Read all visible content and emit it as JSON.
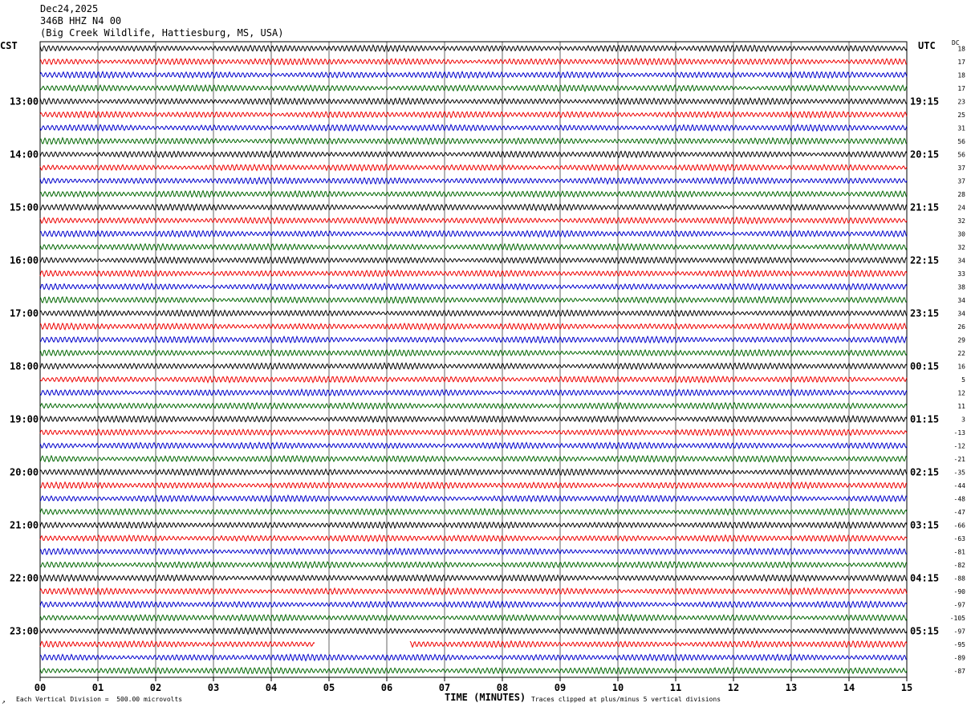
{
  "header": {
    "date": "Dec24,2025",
    "station": "346B HHZ N4 00",
    "location": "(Big Creek Wildlife, Hattiesburg, MS, USA)"
  },
  "axes": {
    "left_timezone": "CST",
    "right_timezone": "UTC",
    "dc_label": "DC",
    "x_title": "TIME (MINUTES)"
  },
  "footer": {
    "left": "Each Vertical Division =  500.00 microvolts",
    "right": "Traces clipped at plus/minus 5 vertical divisions",
    "corner": "↗"
  },
  "chart_data": {
    "type": "line",
    "title": "",
    "x_ticks": [
      "00",
      "01",
      "02",
      "03",
      "04",
      "05",
      "06",
      "07",
      "08",
      "09",
      "10",
      "11",
      "12",
      "13",
      "14",
      "15"
    ],
    "xlim": [
      0,
      15
    ],
    "rows_per_hour": 4,
    "trace_colors": [
      "#000000",
      "#ee0000",
      "#0000cc",
      "#006600"
    ],
    "left_hour_labels": [
      "13:00",
      "14:00",
      "15:00",
      "16:00",
      "17:00",
      "18:00",
      "19:00",
      "20:00",
      "21:00",
      "22:00",
      "23:00"
    ],
    "right_hour_labels": [
      "19:15",
      "20:15",
      "21:15",
      "22:15",
      "23:15",
      "00:15",
      "01:15",
      "02:15",
      "03:15",
      "04:15",
      "05:15"
    ],
    "dc_values": [
      "18",
      "17",
      "18",
      "17",
      "23",
      "25",
      "31",
      "56",
      "56",
      "37",
      "37",
      "28",
      "24",
      "32",
      "30",
      "32",
      "34",
      "33",
      "38",
      "34",
      "34",
      "26",
      "29",
      "22",
      "16",
      "5",
      "12",
      "11",
      "3",
      "-13",
      "-12",
      "-21",
      "-35",
      "-44",
      "-48",
      "-47",
      "-66",
      "-63",
      "-81",
      "-82",
      "-88",
      "-90",
      "-97",
      "-105",
      "-97",
      "-95",
      "-89",
      "-87"
    ],
    "gap": {
      "row": 45,
      "from_minute": 4.75,
      "to_minute": 6.4
    }
  }
}
